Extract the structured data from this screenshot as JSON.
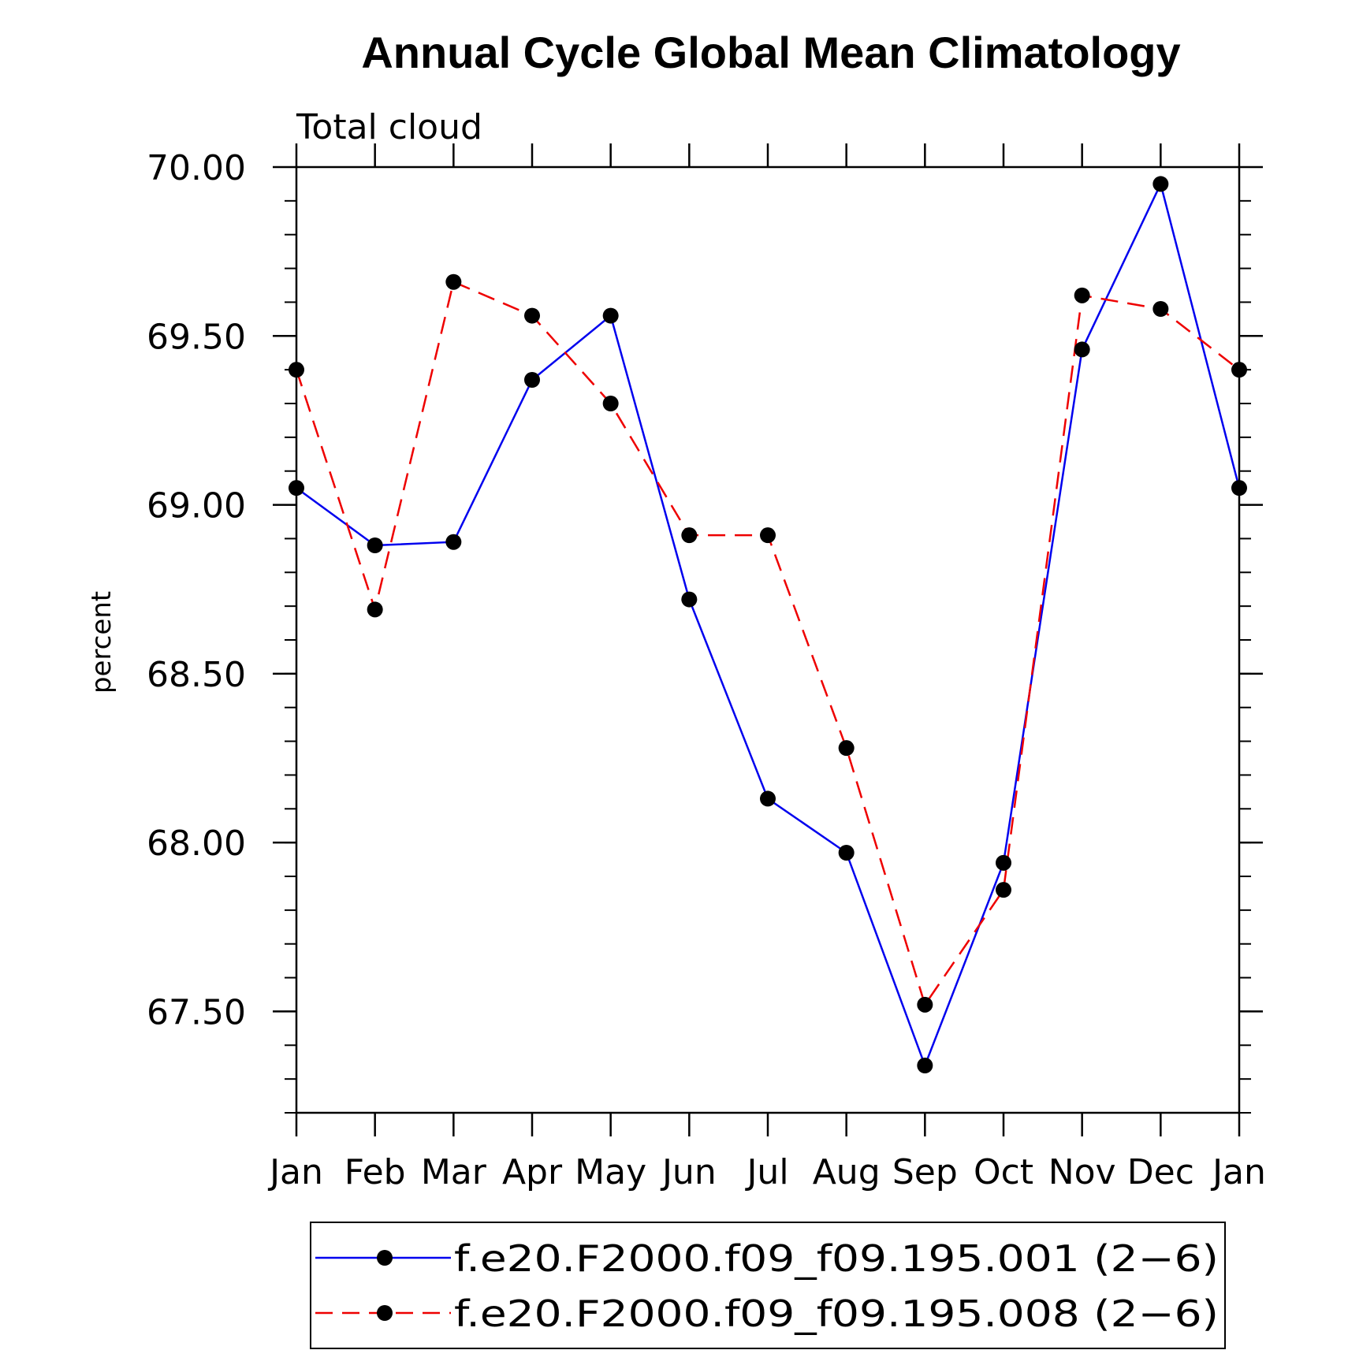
{
  "chart_data": {
    "type": "line",
    "title": "Annual Cycle Global Mean Climatology",
    "subtitle": "Total cloud",
    "ylabel": "percent",
    "xlabel": "",
    "categories": [
      "Jan",
      "Feb",
      "Mar",
      "Apr",
      "May",
      "Jun",
      "Jul",
      "Aug",
      "Sep",
      "Oct",
      "Nov",
      "Dec",
      "Jan"
    ],
    "ylim": [
      67.2,
      70.0
    ],
    "yticks": [
      67.5,
      68.0,
      68.5,
      69.0,
      69.5,
      70.0
    ],
    "ytick_labels": [
      "67.50",
      "68.00",
      "68.50",
      "69.00",
      "69.50",
      "70.00"
    ],
    "yminor_step": 0.1,
    "grid": false,
    "legend_position": "bottom",
    "series": [
      {
        "name": "f.e20.F2000.f09_f09.195.001 (2−6)",
        "color": "#0000ee",
        "dash": "solid",
        "values": [
          69.05,
          68.88,
          68.89,
          69.37,
          69.56,
          68.72,
          68.13,
          67.97,
          67.34,
          67.94,
          69.46,
          69.95,
          69.05
        ]
      },
      {
        "name": "f.e20.F2000.f09_f09.195.008 (2−6)",
        "color": "#ee0000",
        "dash": "dashed",
        "values": [
          69.4,
          68.69,
          69.66,
          69.56,
          69.3,
          68.91,
          68.91,
          68.28,
          67.52,
          67.86,
          69.62,
          69.58,
          69.4
        ]
      }
    ]
  }
}
